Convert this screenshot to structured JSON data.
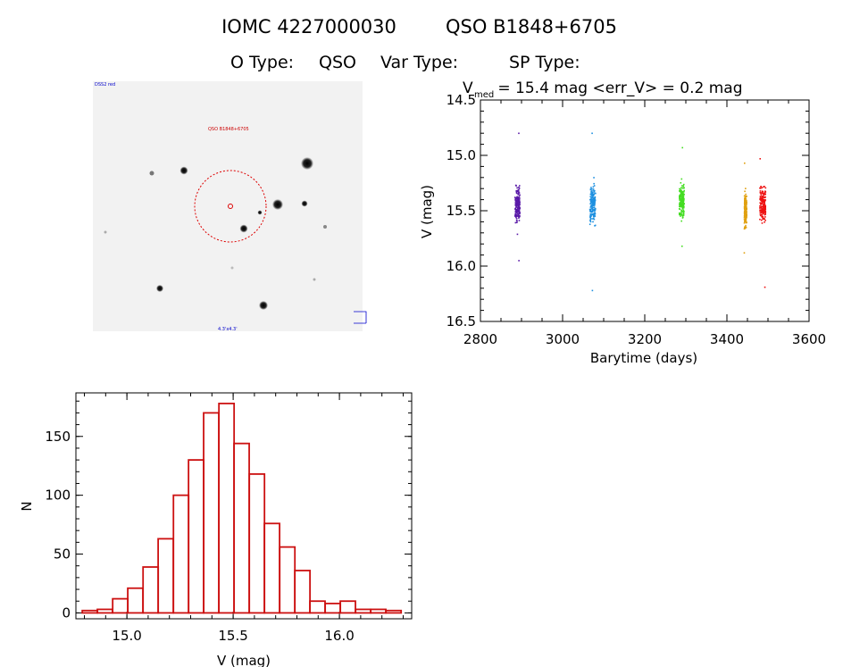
{
  "header": {
    "line1_id": "IOMC 4227000030",
    "line1_name": "QSO B1848+6705",
    "o_type_label": "O Type:",
    "o_type_value": "QSO",
    "var_type_label": "Var Type:",
    "var_type_value": "",
    "sp_type_label": "SP Type:",
    "sp_type_value": ""
  },
  "finding_chart": {
    "top_left_label": "DSS2 red",
    "target_label": "QSO B1848+6705",
    "bottom_label": "4.3'x4.3'",
    "colors": {
      "background": "#f1f1f1",
      "circle": "#dd0000",
      "label": "#cc0000",
      "corner": "#0000cc"
    },
    "stars": [
      {
        "name": "star-a",
        "mag": "bright"
      },
      {
        "name": "star-b",
        "mag": "bright"
      },
      {
        "name": "star-c",
        "mag": "bright"
      },
      {
        "name": "star-d",
        "mag": "medium"
      },
      {
        "name": "star-e",
        "mag": "medium"
      },
      {
        "name": "star-f",
        "mag": "medium"
      },
      {
        "name": "star-g",
        "mag": "medium"
      },
      {
        "name": "star-h",
        "mag": "faint"
      }
    ]
  },
  "chart_data": [
    {
      "type": "scatter",
      "title_main": "V",
      "title_sub": "med",
      "title_rest": " = 15.4 mag <err_V> = 0.2 mag",
      "xlabel": "Barytime (days)",
      "ylabel": "V (mag)",
      "xlim": [
        2800,
        3600
      ],
      "ylim": [
        16.5,
        14.5
      ],
      "y_inverted": true,
      "xticks": [
        "2800",
        "3000",
        "3200",
        "3400",
        "3600"
      ],
      "yticks": [
        "14.5",
        "15.0",
        "15.5",
        "16.0",
        "16.5"
      ],
      "series": [
        {
          "name": "season-1",
          "color": "#5a1aa8",
          "x_center": 2890,
          "x_spread": 6,
          "y_median": 15.45,
          "y_sigma": 0.14,
          "y_range": [
            14.8,
            15.95
          ]
        },
        {
          "name": "season-2",
          "color": "#1e90e0",
          "x_center": 3073,
          "x_spread": 7,
          "y_median": 15.45,
          "y_sigma": 0.16,
          "y_range": [
            14.8,
            16.22
          ]
        },
        {
          "name": "season-3",
          "color": "#44dd22",
          "x_center": 3290,
          "x_spread": 6,
          "y_median": 15.4,
          "y_sigma": 0.13,
          "y_range": [
            14.93,
            15.82
          ]
        },
        {
          "name": "season-4",
          "color": "#e0a010",
          "x_center": 3445,
          "x_spread": 3,
          "y_median": 15.5,
          "y_sigma": 0.14,
          "y_range": [
            15.07,
            15.88
          ]
        },
        {
          "name": "season-5",
          "color": "#ee1111",
          "x_center": 3487,
          "x_spread": 7,
          "y_median": 15.45,
          "y_sigma": 0.13,
          "y_range": [
            15.03,
            16.19
          ]
        }
      ]
    },
    {
      "type": "bar",
      "xlabel": "V (mag)",
      "ylabel": "N",
      "xlim": [
        14.76,
        16.34
      ],
      "ylim": [
        -5,
        187
      ],
      "xticks": [
        "15.0",
        "15.5",
        "16.0"
      ],
      "yticks": [
        "0",
        "50",
        "100",
        "150"
      ],
      "bin_width": 0.0714,
      "bin_starts": [
        14.79,
        14.861,
        14.933,
        15.004,
        15.076,
        15.147,
        15.219,
        15.29,
        15.361,
        15.433,
        15.504,
        15.576,
        15.647,
        15.719,
        15.79,
        15.861,
        15.933,
        16.004,
        16.076,
        16.147,
        16.219
      ],
      "values": [
        2,
        3,
        12,
        21,
        39,
        63,
        100,
        130,
        170,
        178,
        144,
        118,
        76,
        56,
        36,
        10,
        8,
        10,
        3,
        3,
        2
      ],
      "color": "#cc1111"
    }
  ]
}
